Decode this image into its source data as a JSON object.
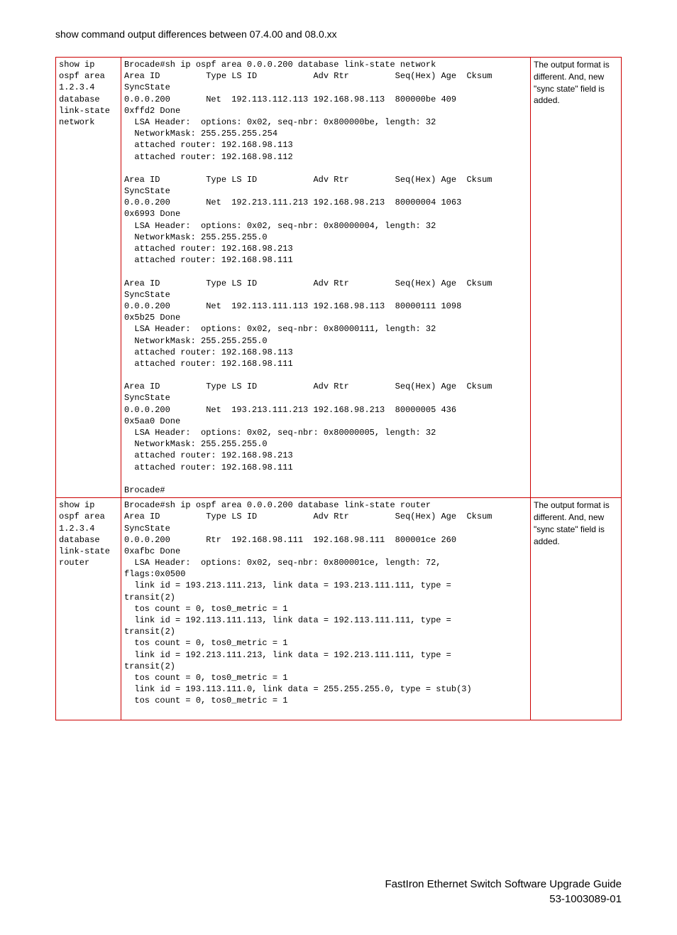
{
  "header": {
    "title": "show command output differences between 07.4.00 and 08.0.xx"
  },
  "table": {
    "rows": [
      {
        "command": "show ip\nospf area\n1.2.3.4\ndatabase\nlink-state\nnetwork",
        "output": "Brocade#sh ip ospf area 0.0.0.200 database link-state network\nArea ID         Type LS ID           Adv Rtr         Seq(Hex) Age  Cksum\nSyncState\n0.0.0.200       Net  192.113.112.113 192.168.98.113  800000be 409\n0xffd2 Done\n  LSA Header:  options: 0x02, seq-nbr: 0x800000be, length: 32\n  NetworkMask: 255.255.255.254\n  attached router: 192.168.98.113\n  attached router: 192.168.98.112\n\nArea ID         Type LS ID           Adv Rtr         Seq(Hex) Age  Cksum\nSyncState\n0.0.0.200       Net  192.213.111.213 192.168.98.213  80000004 1063\n0x6993 Done\n  LSA Header:  options: 0x02, seq-nbr: 0x80000004, length: 32\n  NetworkMask: 255.255.255.0\n  attached router: 192.168.98.213\n  attached router: 192.168.98.111\n\nArea ID         Type LS ID           Adv Rtr         Seq(Hex) Age  Cksum\nSyncState\n0.0.0.200       Net  192.113.111.113 192.168.98.113  80000111 1098\n0x5b25 Done\n  LSA Header:  options: 0x02, seq-nbr: 0x80000111, length: 32\n  NetworkMask: 255.255.255.0\n  attached router: 192.168.98.113\n  attached router: 192.168.98.111\n\nArea ID         Type LS ID           Adv Rtr         Seq(Hex) Age  Cksum\nSyncState\n0.0.0.200       Net  193.213.111.213 192.168.98.213  80000005 436\n0x5aa0 Done\n  LSA Header:  options: 0x02, seq-nbr: 0x80000005, length: 32\n  NetworkMask: 255.255.255.0\n  attached router: 192.168.98.213\n  attached router: 192.168.98.111\n\nBrocade#",
        "description": "The output format is different. And, new \"sync state\" field is added."
      },
      {
        "command": "show ip\nospf area\n1.2.3.4\ndatabase\nlink-state\nrouter",
        "output": "Brocade#sh ip ospf area 0.0.0.200 database link-state router\nArea ID         Type LS ID           Adv Rtr         Seq(Hex) Age  Cksum\nSyncState\n0.0.0.200       Rtr  192.168.98.111  192.168.98.111  800001ce 260\n0xafbc Done\n  LSA Header:  options: 0x02, seq-nbr: 0x800001ce, length: 72,\nflags:0x0500\n  link id = 193.213.111.213, link data = 193.213.111.111, type =\ntransit(2)\n  tos count = 0, tos0_metric = 1\n  link id = 192.113.111.113, link data = 192.113.111.111, type =\ntransit(2)\n  tos count = 0, tos0_metric = 1\n  link id = 192.213.111.213, link data = 192.213.111.111, type =\ntransit(2)\n  tos count = 0, tos0_metric = 1\n  link id = 193.113.111.0, link data = 255.255.255.0, type = stub(3)\n  tos count = 0, tos0_metric = 1\n\n",
        "description": "The output format is different. And, new \"sync state\" field is added."
      }
    ]
  },
  "footer": {
    "line1": "FastIron Ethernet Switch Software Upgrade Guide",
    "line2": "53-1003089-01"
  }
}
